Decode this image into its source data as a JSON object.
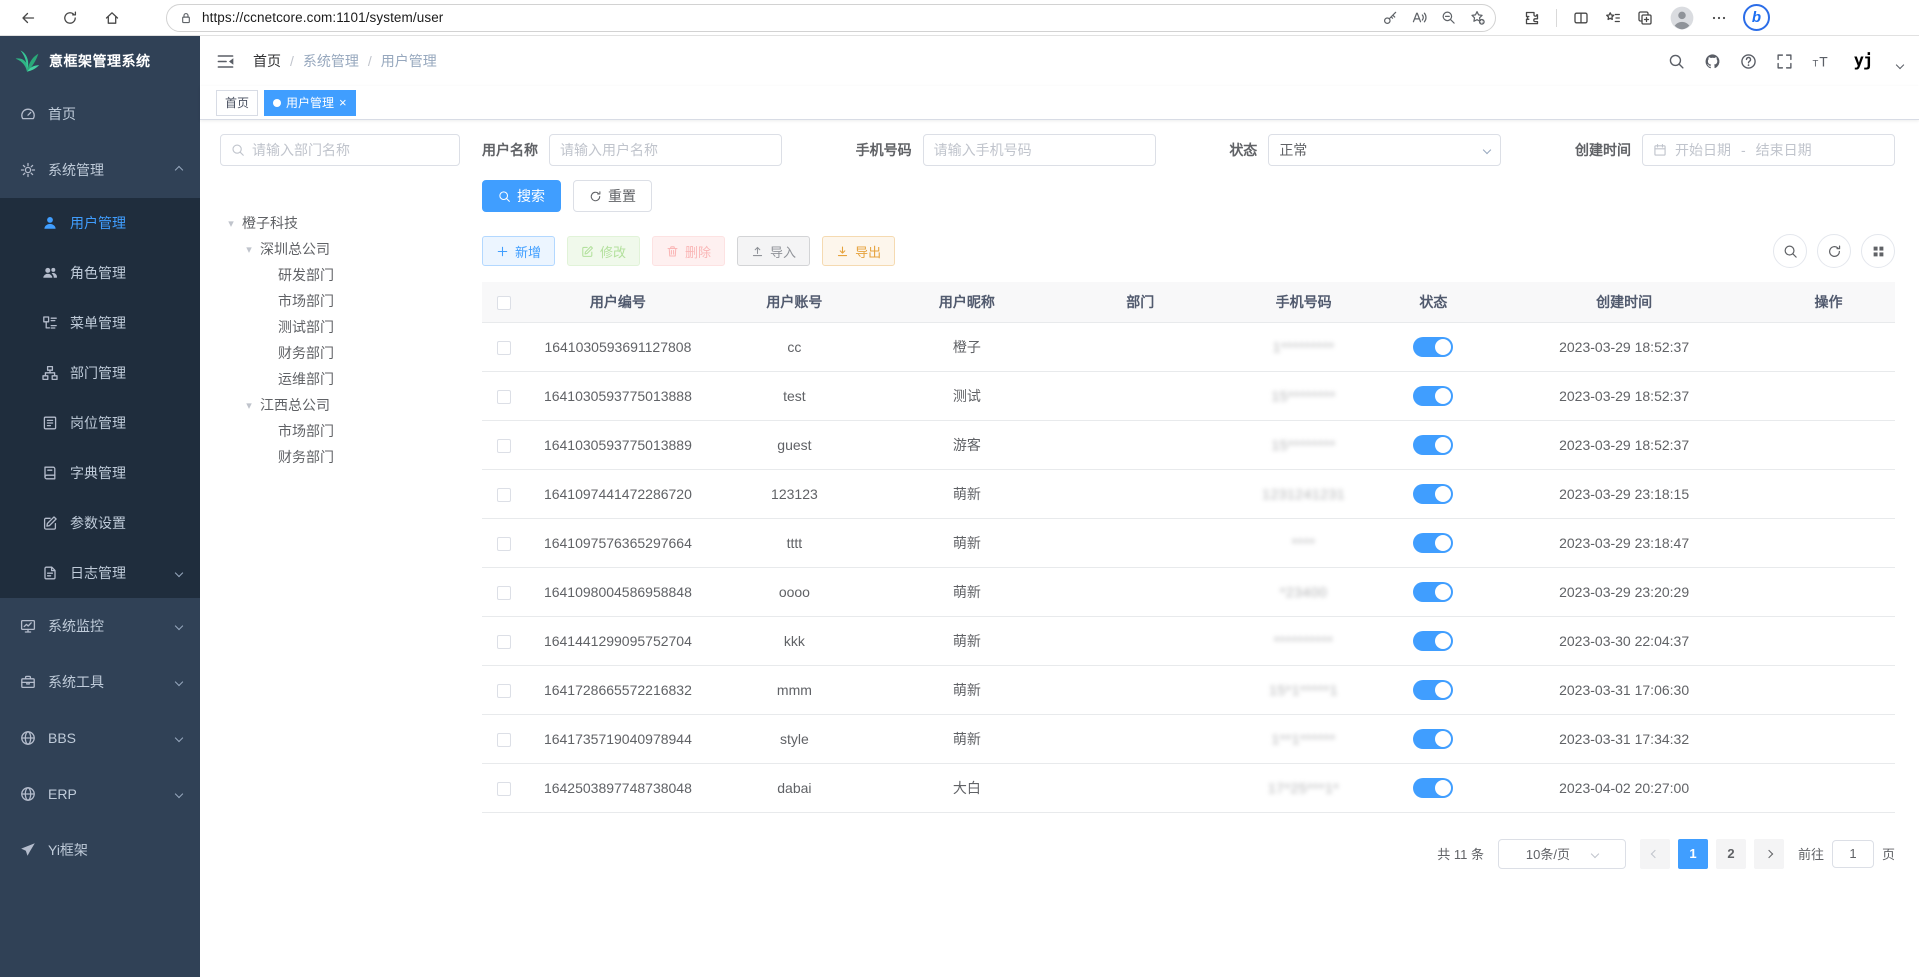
{
  "browser": {
    "url": "https://ccnetcore.com:1101/system/user"
  },
  "sidebar": {
    "title": "意框架管理系统",
    "items": [
      {
        "label": "首页",
        "icon": "dashboard-icon"
      },
      {
        "label": "系统管理",
        "icon": "gear-icon",
        "expanded": true,
        "children": [
          {
            "label": "用户管理",
            "icon": "user-icon",
            "active": true
          },
          {
            "label": "角色管理",
            "icon": "users-icon"
          },
          {
            "label": "菜单管理",
            "icon": "menu-list-icon"
          },
          {
            "label": "部门管理",
            "icon": "org-tree-icon"
          },
          {
            "label": "岗位管理",
            "icon": "post-icon"
          },
          {
            "label": "字典管理",
            "icon": "dictionary-icon"
          },
          {
            "label": "参数设置",
            "icon": "edit-square-icon"
          },
          {
            "label": "日志管理",
            "icon": "log-icon",
            "has_children": true
          }
        ]
      },
      {
        "label": "系统监控",
        "icon": "monitor-icon",
        "has_children": true
      },
      {
        "label": "系统工具",
        "icon": "toolbox-icon",
        "has_children": true
      },
      {
        "label": "BBS",
        "icon": "globe-icon",
        "has_children": true
      },
      {
        "label": "ERP",
        "icon": "globe-icon",
        "has_children": true
      },
      {
        "label": "Yi框架",
        "icon": "paper-plane-icon"
      }
    ]
  },
  "header": {
    "breadcrumb": [
      "首页",
      "系统管理",
      "用户管理"
    ]
  },
  "tags": [
    {
      "label": "首页",
      "active": false
    },
    {
      "label": "用户管理",
      "active": true
    }
  ],
  "filters": {
    "dept_placeholder": "请输入部门名称",
    "username_label": "用户名称",
    "username_placeholder": "请输入用户名称",
    "phone_label": "手机号码",
    "phone_placeholder": "请输入手机号码",
    "status_label": "状态",
    "status_value": "正常",
    "created_label": "创建时间",
    "date_start": "开始日期",
    "date_separator": "-",
    "date_end": "结束日期",
    "search": "搜索",
    "reset": "重置"
  },
  "dept_tree": [
    {
      "label": "橙子科技",
      "depth": 0,
      "expandable": true
    },
    {
      "label": "深圳总公司",
      "depth": 1,
      "expandable": true
    },
    {
      "label": "研发部门",
      "depth": 2
    },
    {
      "label": "市场部门",
      "depth": 2
    },
    {
      "label": "测试部门",
      "depth": 2
    },
    {
      "label": "财务部门",
      "depth": 2
    },
    {
      "label": "运维部门",
      "depth": 2
    },
    {
      "label": "江西总公司",
      "depth": 1,
      "expandable": true
    },
    {
      "label": "市场部门",
      "depth": 2
    },
    {
      "label": "财务部门",
      "depth": 2
    }
  ],
  "toolbar": {
    "add": "新增",
    "modify": "修改",
    "delete": "删除",
    "import": "导入",
    "export": "导出"
  },
  "table": {
    "columns": [
      "用户编号",
      "用户账号",
      "用户昵称",
      "部门",
      "手机号码",
      "状态",
      "创建时间",
      "操作"
    ],
    "rows": [
      {
        "id": "1641030593691127808",
        "account": "cc",
        "nickname": "橙子",
        "dept": "",
        "phone": "1*********",
        "status": "on",
        "created": "2023-03-29 18:52:37",
        "ops": false
      },
      {
        "id": "1641030593775013888",
        "account": "test",
        "nickname": "测试",
        "dept": "",
        "phone": "15********",
        "status": "on",
        "created": "2023-03-29 18:52:37",
        "ops": true
      },
      {
        "id": "1641030593775013889",
        "account": "guest",
        "nickname": "游客",
        "dept": "",
        "phone": "15********",
        "status": "on",
        "created": "2023-03-29 18:52:37",
        "ops": true
      },
      {
        "id": "1641097441472286720",
        "account": "123123",
        "nickname": "萌新",
        "dept": "",
        "phone": "1231241231",
        "status": "on",
        "created": "2023-03-29 23:18:15",
        "ops": true
      },
      {
        "id": "1641097576365297664",
        "account": "tttt",
        "nickname": "萌新",
        "dept": "",
        "phone": "****",
        "status": "on",
        "created": "2023-03-29 23:18:47",
        "ops": true
      },
      {
        "id": "1641098004586958848",
        "account": "oooo",
        "nickname": "萌新",
        "dept": "",
        "phone": "*23400",
        "status": "on",
        "created": "2023-03-29 23:20:29",
        "ops": true
      },
      {
        "id": "1641441299095752704",
        "account": "kkk",
        "nickname": "萌新",
        "dept": "",
        "phone": "**********",
        "status": "on",
        "created": "2023-03-30 22:04:37",
        "ops": true
      },
      {
        "id": "1641728665572216832",
        "account": "mmm",
        "nickname": "萌新",
        "dept": "",
        "phone": "15*1*****1",
        "status": "on",
        "created": "2023-03-31 17:06:30",
        "ops": true
      },
      {
        "id": "1641735719040978944",
        "account": "style",
        "nickname": "萌新",
        "dept": "",
        "phone": "1**1******",
        "status": "on",
        "created": "2023-03-31 17:34:32",
        "ops": true
      },
      {
        "id": "1642503897748738048",
        "account": "dabai",
        "nickname": "大白",
        "dept": "",
        "phone": "17*25***1*",
        "status": "on",
        "created": "2023-04-02 20:27:00",
        "ops": true
      }
    ]
  },
  "pagination": {
    "total": "共 11 条",
    "page_size": "10条/页",
    "pages": [
      "1",
      "2"
    ],
    "active": "1",
    "goto": "前往",
    "goto_value": "1",
    "unit": "页"
  }
}
